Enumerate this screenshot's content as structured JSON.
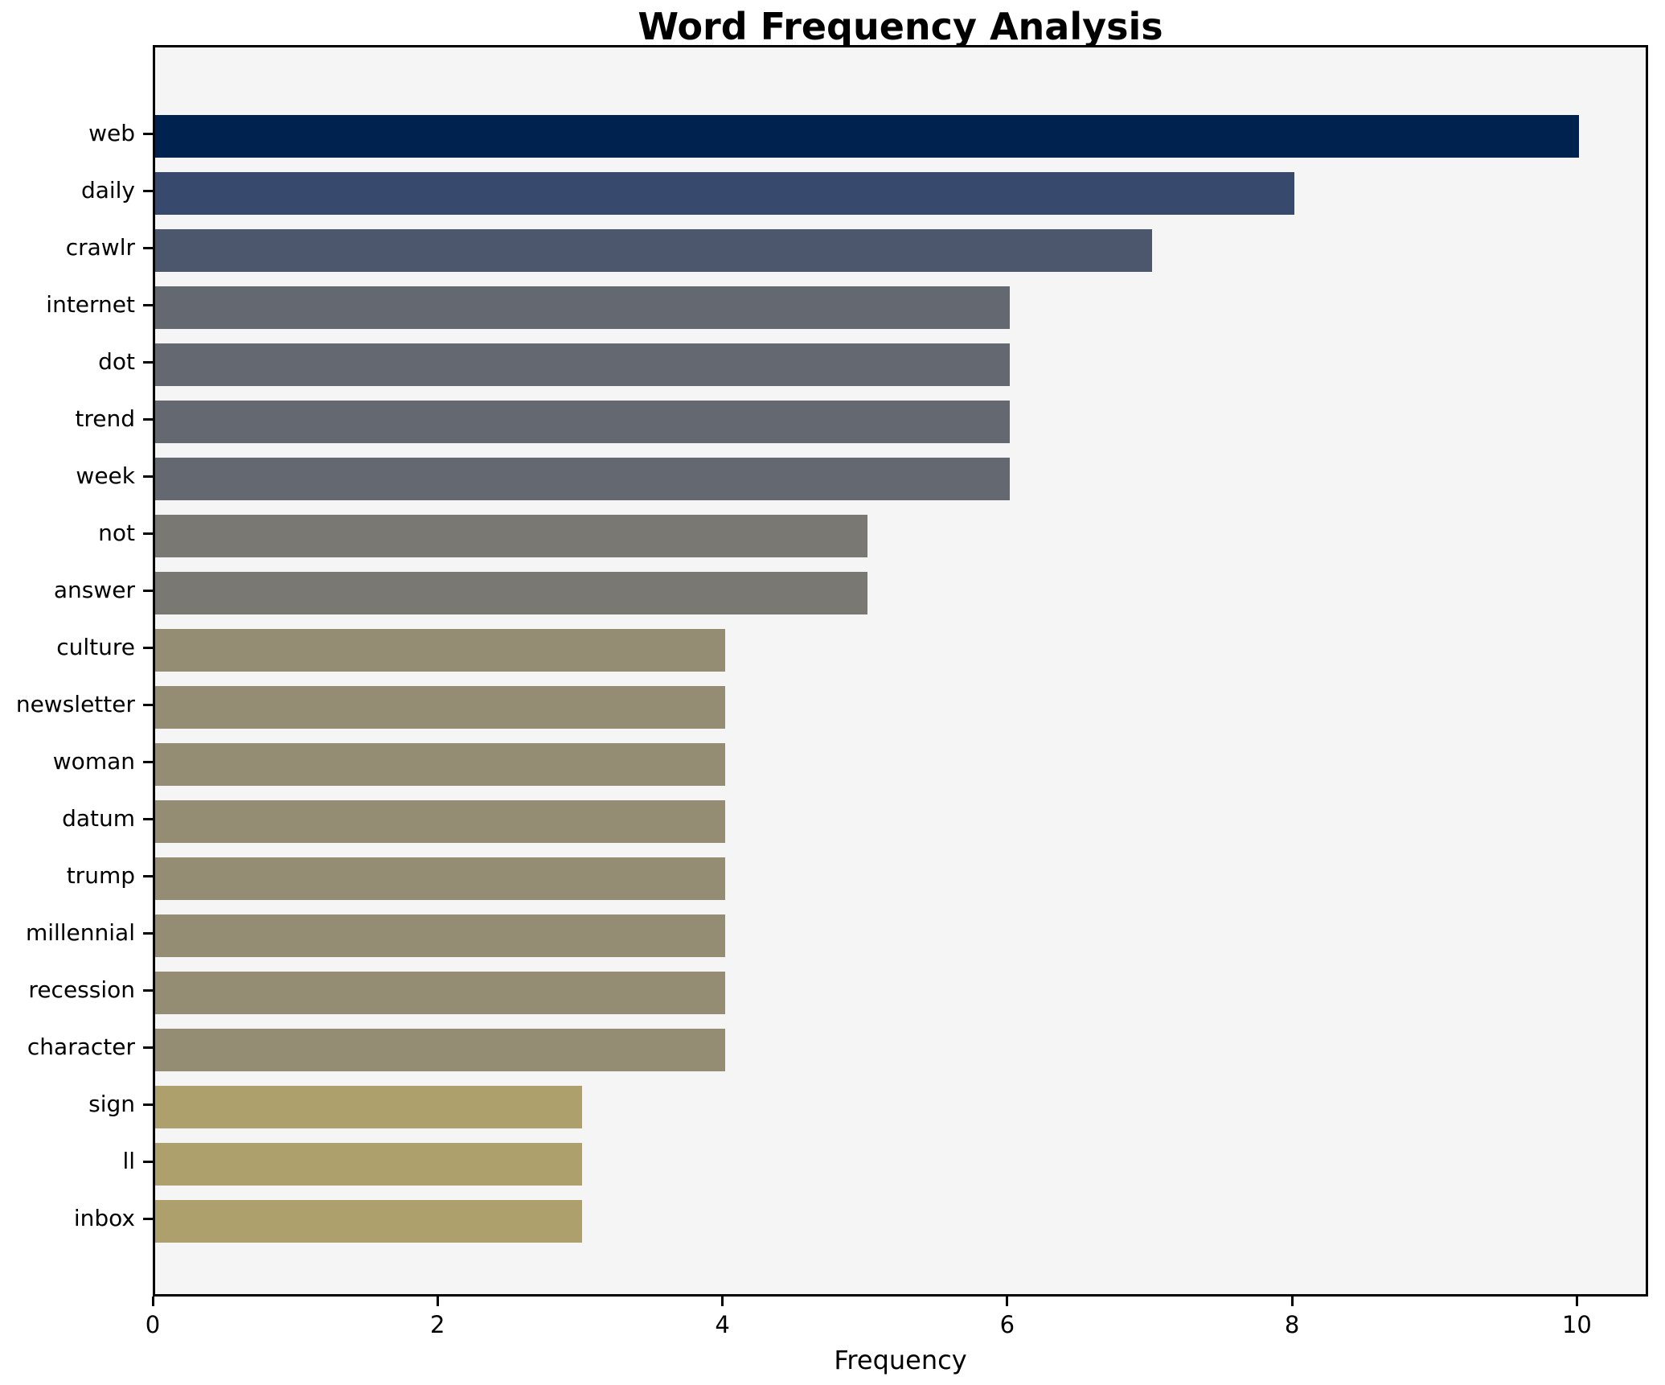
{
  "chart_data": {
    "type": "bar",
    "orientation": "horizontal",
    "title": "Word Frequency Analysis",
    "xlabel": "Frequency",
    "ylabel": "",
    "categories": [
      "web",
      "daily",
      "crawlr",
      "internet",
      "dot",
      "trend",
      "week",
      "not",
      "answer",
      "culture",
      "newsletter",
      "woman",
      "datum",
      "trump",
      "millennial",
      "recession",
      "character",
      "sign",
      "ll",
      "inbox"
    ],
    "values": [
      10,
      8,
      7,
      6,
      6,
      6,
      6,
      5,
      5,
      4,
      4,
      4,
      4,
      4,
      4,
      4,
      4,
      3,
      3,
      3
    ],
    "bar_colors": [
      "#00224e",
      "#37496c",
      "#4c566c",
      "#646870",
      "#646870",
      "#646870",
      "#646870",
      "#7a7872",
      "#7a7872",
      "#948d74",
      "#948d74",
      "#948d74",
      "#948d74",
      "#948d74",
      "#948d74",
      "#948d74",
      "#948d74",
      "#ada06c",
      "#ada06c",
      "#ada06c"
    ],
    "xticks": [
      0,
      2,
      4,
      6,
      8,
      10
    ],
    "xlim": [
      0,
      10.5
    ],
    "grid": false,
    "legend": false,
    "colormap": "cividis",
    "plot_background": "#f5f5f6",
    "figure_background": "#ffffff"
  }
}
